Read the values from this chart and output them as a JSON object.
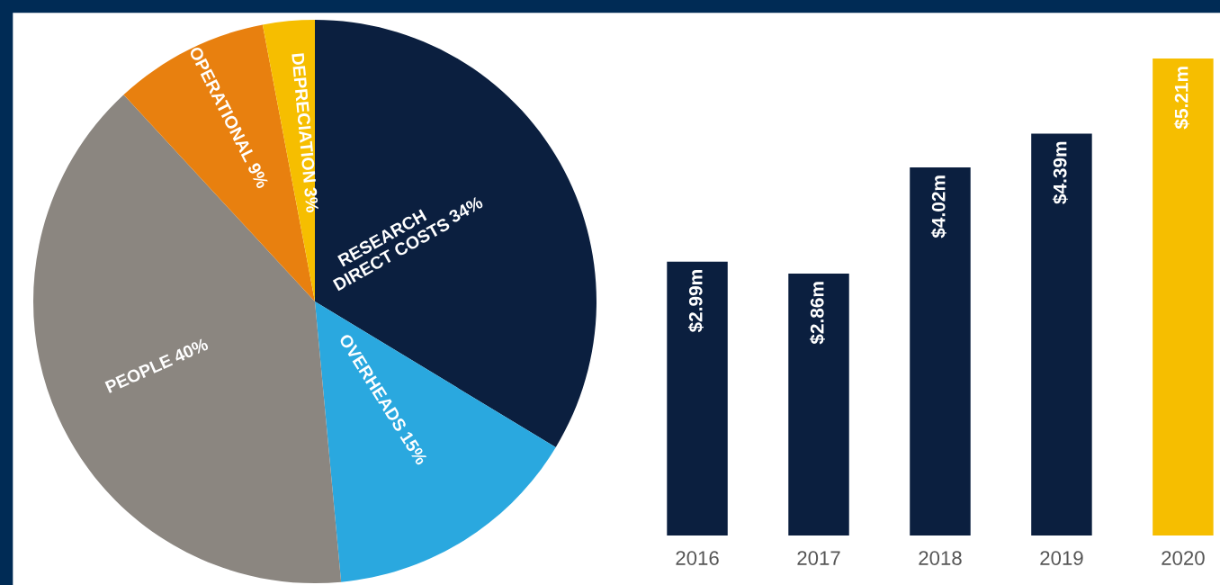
{
  "chart_data": [
    {
      "type": "pie",
      "categories": [
        "RESEARCH\nDIRECT COSTS",
        "OVERHEADS",
        "PEOPLE",
        "OPERATIONAL",
        "DEPRECIATION"
      ],
      "values": [
        34,
        15,
        40,
        9,
        3
      ],
      "colors": [
        "#0b1f3f",
        "#2aa8df",
        "#8b8680",
        "#e8800f",
        "#f6be00"
      ],
      "value_labels": [
        "34%",
        "15%",
        "40%",
        "9%",
        "3%"
      ]
    },
    {
      "type": "bar",
      "categories": [
        "2016",
        "2017",
        "2018",
        "2019",
        "2020"
      ],
      "values": [
        2.99,
        2.86,
        4.02,
        4.39,
        5.21
      ],
      "colors": [
        "#0b1f3f",
        "#0b1f3f",
        "#0b1f3f",
        "#0b1f3f",
        "#f6be00"
      ],
      "value_labels": [
        "$2.99m",
        "$2.86m",
        "$4.02m",
        "$4.39m",
        "$5.21m"
      ]
    }
  ]
}
